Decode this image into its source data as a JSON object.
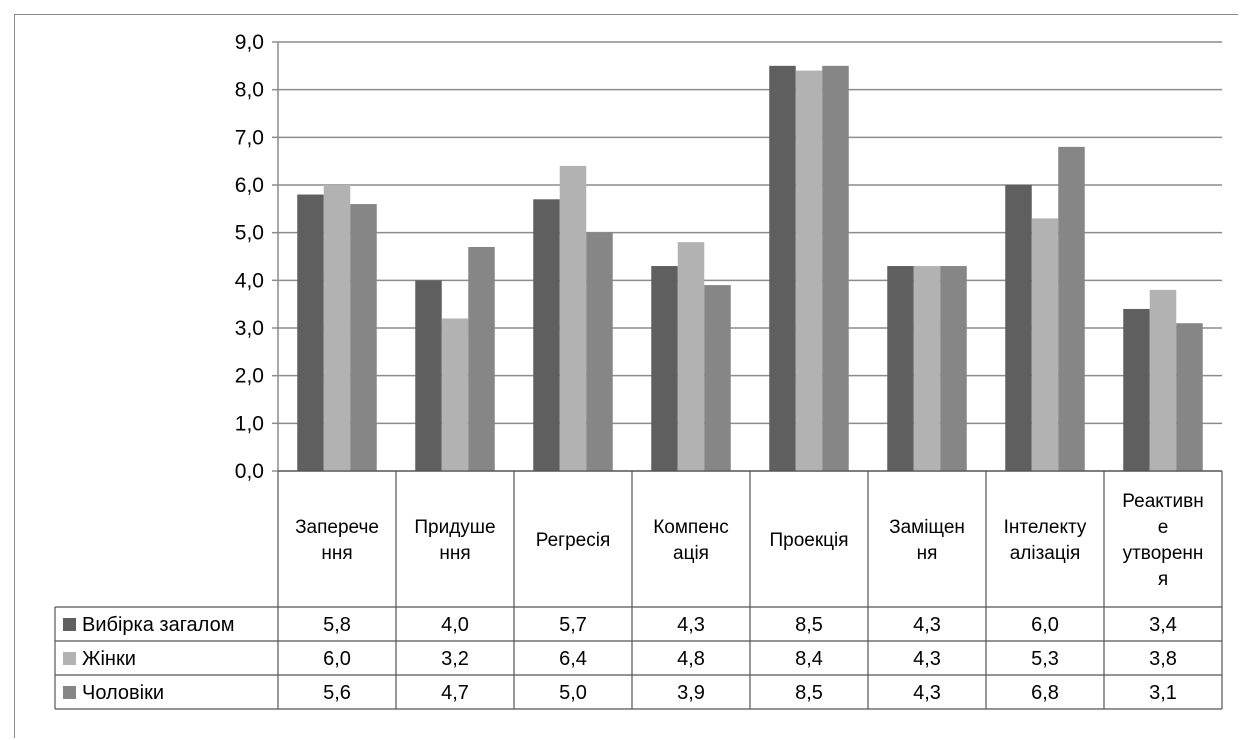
{
  "colors": {
    "series": [
      "#5f5f5f",
      "#b2b2b2",
      "#868686"
    ],
    "grid": "#8c8c8c",
    "text": "#000000"
  },
  "chart_data": {
    "type": "bar",
    "title": "",
    "xlabel": "",
    "ylabel": "",
    "ylim": [
      0,
      9
    ],
    "yticks": [
      "0,0",
      "1,0",
      "2,0",
      "3,0",
      "4,0",
      "5,0",
      "6,0",
      "7,0",
      "8,0",
      "9,0"
    ],
    "grid": true,
    "legend": "table-left",
    "categories": [
      "Заперечення",
      "Придушення",
      "Регресія",
      "Компенсація",
      "Проекція",
      "Заміщення",
      "Інтелектуалізація",
      "Реактивне утворення"
    ],
    "category_label_lines": [
      [
        "Заперече",
        "ння"
      ],
      [
        "Придуше",
        "ння"
      ],
      [
        "Регресія"
      ],
      [
        "Компенс",
        "ація"
      ],
      [
        "Проекція"
      ],
      [
        "Заміщен",
        "ня"
      ],
      [
        "Інтелекту",
        "алізація"
      ],
      [
        "Реактивн",
        "е",
        "утворенн",
        "я"
      ]
    ],
    "series": [
      {
        "name": "Вибірка загалом",
        "values": [
          5.8,
          4.0,
          5.7,
          4.3,
          8.5,
          4.3,
          6.0,
          3.4
        ],
        "labels": [
          "5,8",
          "4,0",
          "5,7",
          "4,3",
          "8,5",
          "4,3",
          "6,0",
          "3,4"
        ]
      },
      {
        "name": "Жінки",
        "values": [
          6.0,
          3.2,
          6.4,
          4.8,
          8.4,
          4.3,
          5.3,
          3.8
        ],
        "labels": [
          "6,0",
          "3,2",
          "6,4",
          "4,8",
          "8,4",
          "4,3",
          "5,3",
          "3,8"
        ]
      },
      {
        "name": "Чоловіки",
        "values": [
          5.6,
          4.7,
          5.0,
          3.9,
          8.5,
          4.3,
          6.8,
          3.1
        ],
        "labels": [
          "5,6",
          "4,7",
          "5,0",
          "3,9",
          "8,5",
          "4,3",
          "6,8",
          "3,1"
        ]
      }
    ]
  }
}
